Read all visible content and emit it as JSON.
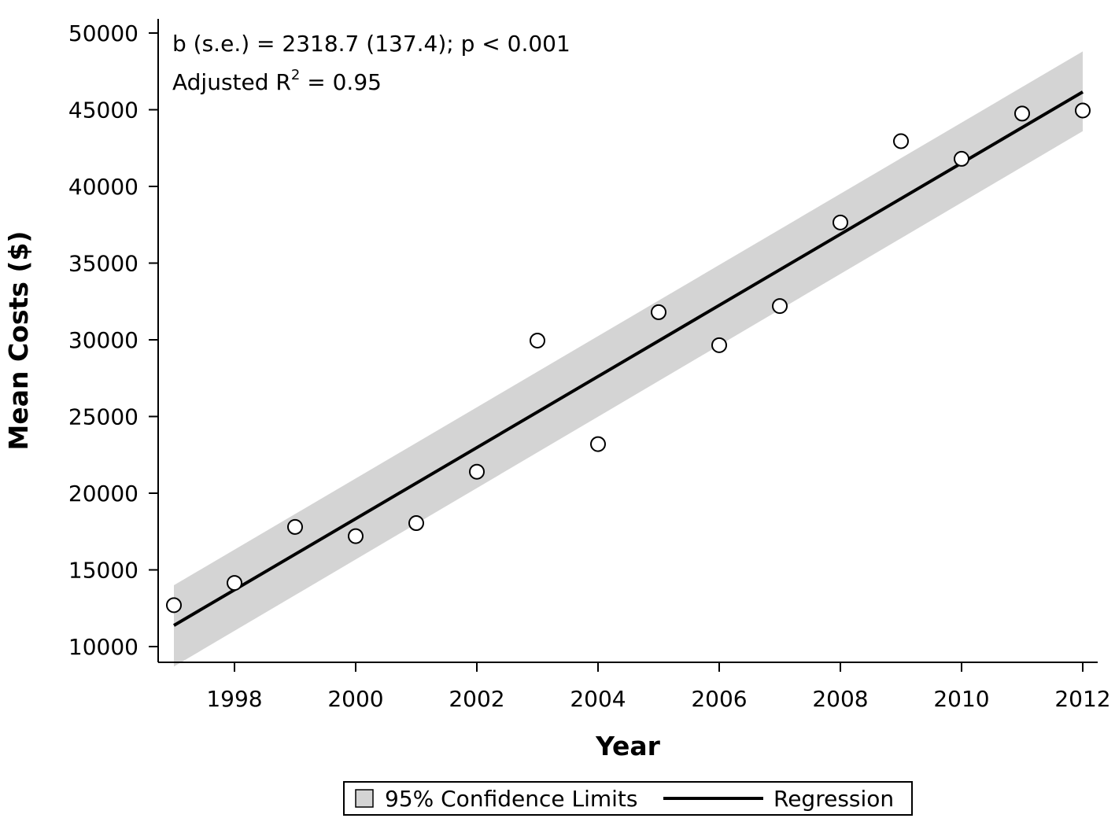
{
  "chart_data": {
    "type": "scatter",
    "title": "",
    "xlabel": "Year",
    "ylabel": "Mean Costs ($)",
    "xlim": [
      1997,
      2012
    ],
    "ylim": [
      9000,
      51000
    ],
    "xticks": [
      "1998",
      "2000",
      "2002",
      "2004",
      "2006",
      "2008",
      "2010",
      "2012"
    ],
    "yticks": [
      "10000",
      "15000",
      "20000",
      "25000",
      "30000",
      "35000",
      "40000",
      "45000",
      "50000"
    ],
    "annotations": {
      "line1": "b (s.e.) = 2318.7 (137.4); p < 0.001",
      "line2_prefix": "Adjusted R",
      "line2_sup": "2",
      "line2_suffix": " = 0.95"
    },
    "points": {
      "x": [
        1997,
        1998,
        1999,
        2000,
        2001,
        2002,
        2003,
        2004,
        2005,
        2006,
        2007,
        2008,
        2009,
        2010,
        2011,
        2012
      ],
      "y": [
        12700,
        14150,
        17800,
        17200,
        18050,
        21400,
        29950,
        23200,
        31800,
        29650,
        32200,
        37650,
        42950,
        41800,
        44750,
        44950
      ]
    },
    "regression": {
      "x": [
        1997,
        2012
      ],
      "y": [
        11380,
        46160
      ]
    },
    "confidence_band": {
      "x": [
        1997,
        2012
      ],
      "upper": [
        14000,
        48800
      ],
      "lower": [
        8700,
        43600
      ]
    },
    "legend": {
      "position": "bottom",
      "items": [
        "95% Confidence Limits",
        "Regression"
      ]
    },
    "grid": false,
    "colors": {
      "band": "#d4d4d4",
      "line": "#000000",
      "marker_fill": "#ffffff"
    }
  }
}
